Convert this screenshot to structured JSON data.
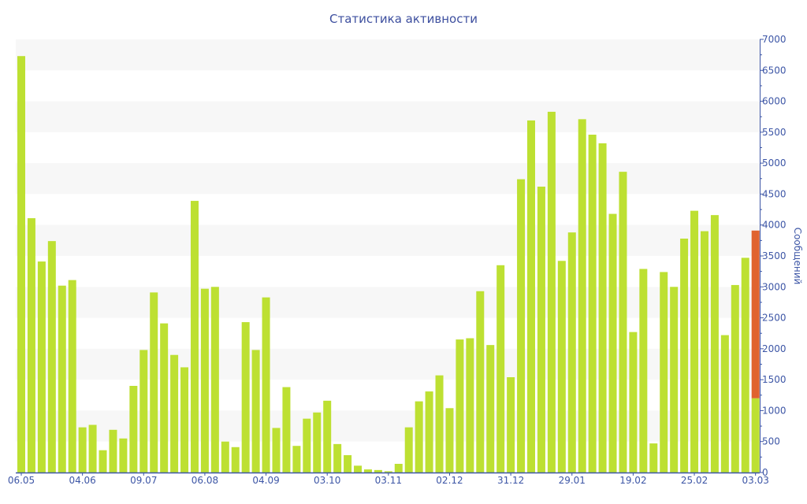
{
  "chart_data": {
    "type": "bar",
    "title": "Статистика активности",
    "xlabel": "",
    "ylabel": "Сообщений",
    "ylim": [
      0,
      7000
    ],
    "y_ticks": [
      0,
      500,
      1000,
      1500,
      2000,
      2500,
      3000,
      3500,
      4000,
      4500,
      5000,
      5500,
      6000,
      6500,
      7000
    ],
    "y_axis_side": "right",
    "grid": "alternating horizontal bands every 500",
    "x_tick_labels": [
      {
        "index": 0,
        "label": "06.05"
      },
      {
        "index": 6,
        "label": "04.06"
      },
      {
        "index": 12,
        "label": "09.07"
      },
      {
        "index": 18,
        "label": "06.08"
      },
      {
        "index": 24,
        "label": "04.09"
      },
      {
        "index": 30,
        "label": "03.10"
      },
      {
        "index": 36,
        "label": "03.11"
      },
      {
        "index": 42,
        "label": "02.12"
      },
      {
        "index": 48,
        "label": "31.12"
      },
      {
        "index": 54,
        "label": "29.01"
      },
      {
        "index": 60,
        "label": "19.02"
      },
      {
        "index": 66,
        "label": "25.02"
      },
      {
        "index": 72,
        "label": "03.03"
      }
    ],
    "series": [
      {
        "name": "messages",
        "color": "#bde032",
        "values": [
          6730,
          4110,
          3410,
          3740,
          3020,
          3110,
          730,
          770,
          360,
          690,
          550,
          1400,
          1980,
          2910,
          2410,
          1900,
          1700,
          4390,
          2970,
          3000,
          500,
          410,
          2430,
          1980,
          2830,
          720,
          1380,
          430,
          870,
          970,
          1160,
          460,
          280,
          110,
          50,
          40,
          20,
          140,
          730,
          1150,
          1310,
          1570,
          1040,
          2150,
          2170,
          2930,
          2060,
          3350,
          1540,
          4740,
          5690,
          4620,
          5830,
          3420,
          3880,
          5710,
          5460,
          5320,
          4180,
          4860,
          2270,
          3290,
          470,
          3240,
          3000,
          3780,
          4230,
          3900,
          4160,
          2220,
          3030,
          3470,
          1200
        ]
      },
      {
        "name": "messages-extra",
        "color": "#e0632f",
        "stacked": true,
        "values": [
          0,
          0,
          0,
          0,
          0,
          0,
          0,
          0,
          0,
          0,
          0,
          0,
          0,
          0,
          0,
          0,
          0,
          0,
          0,
          0,
          0,
          0,
          0,
          0,
          0,
          0,
          0,
          0,
          0,
          0,
          0,
          0,
          0,
          0,
          0,
          0,
          0,
          0,
          0,
          0,
          0,
          0,
          0,
          0,
          0,
          0,
          0,
          0,
          0,
          0,
          0,
          0,
          0,
          0,
          0,
          0,
          0,
          0,
          0,
          0,
          0,
          0,
          0,
          0,
          0,
          0,
          0,
          0,
          0,
          0,
          0,
          0,
          2710
        ]
      }
    ],
    "axis_color": "#3d56a6",
    "band_color": "#f7f7f7"
  }
}
